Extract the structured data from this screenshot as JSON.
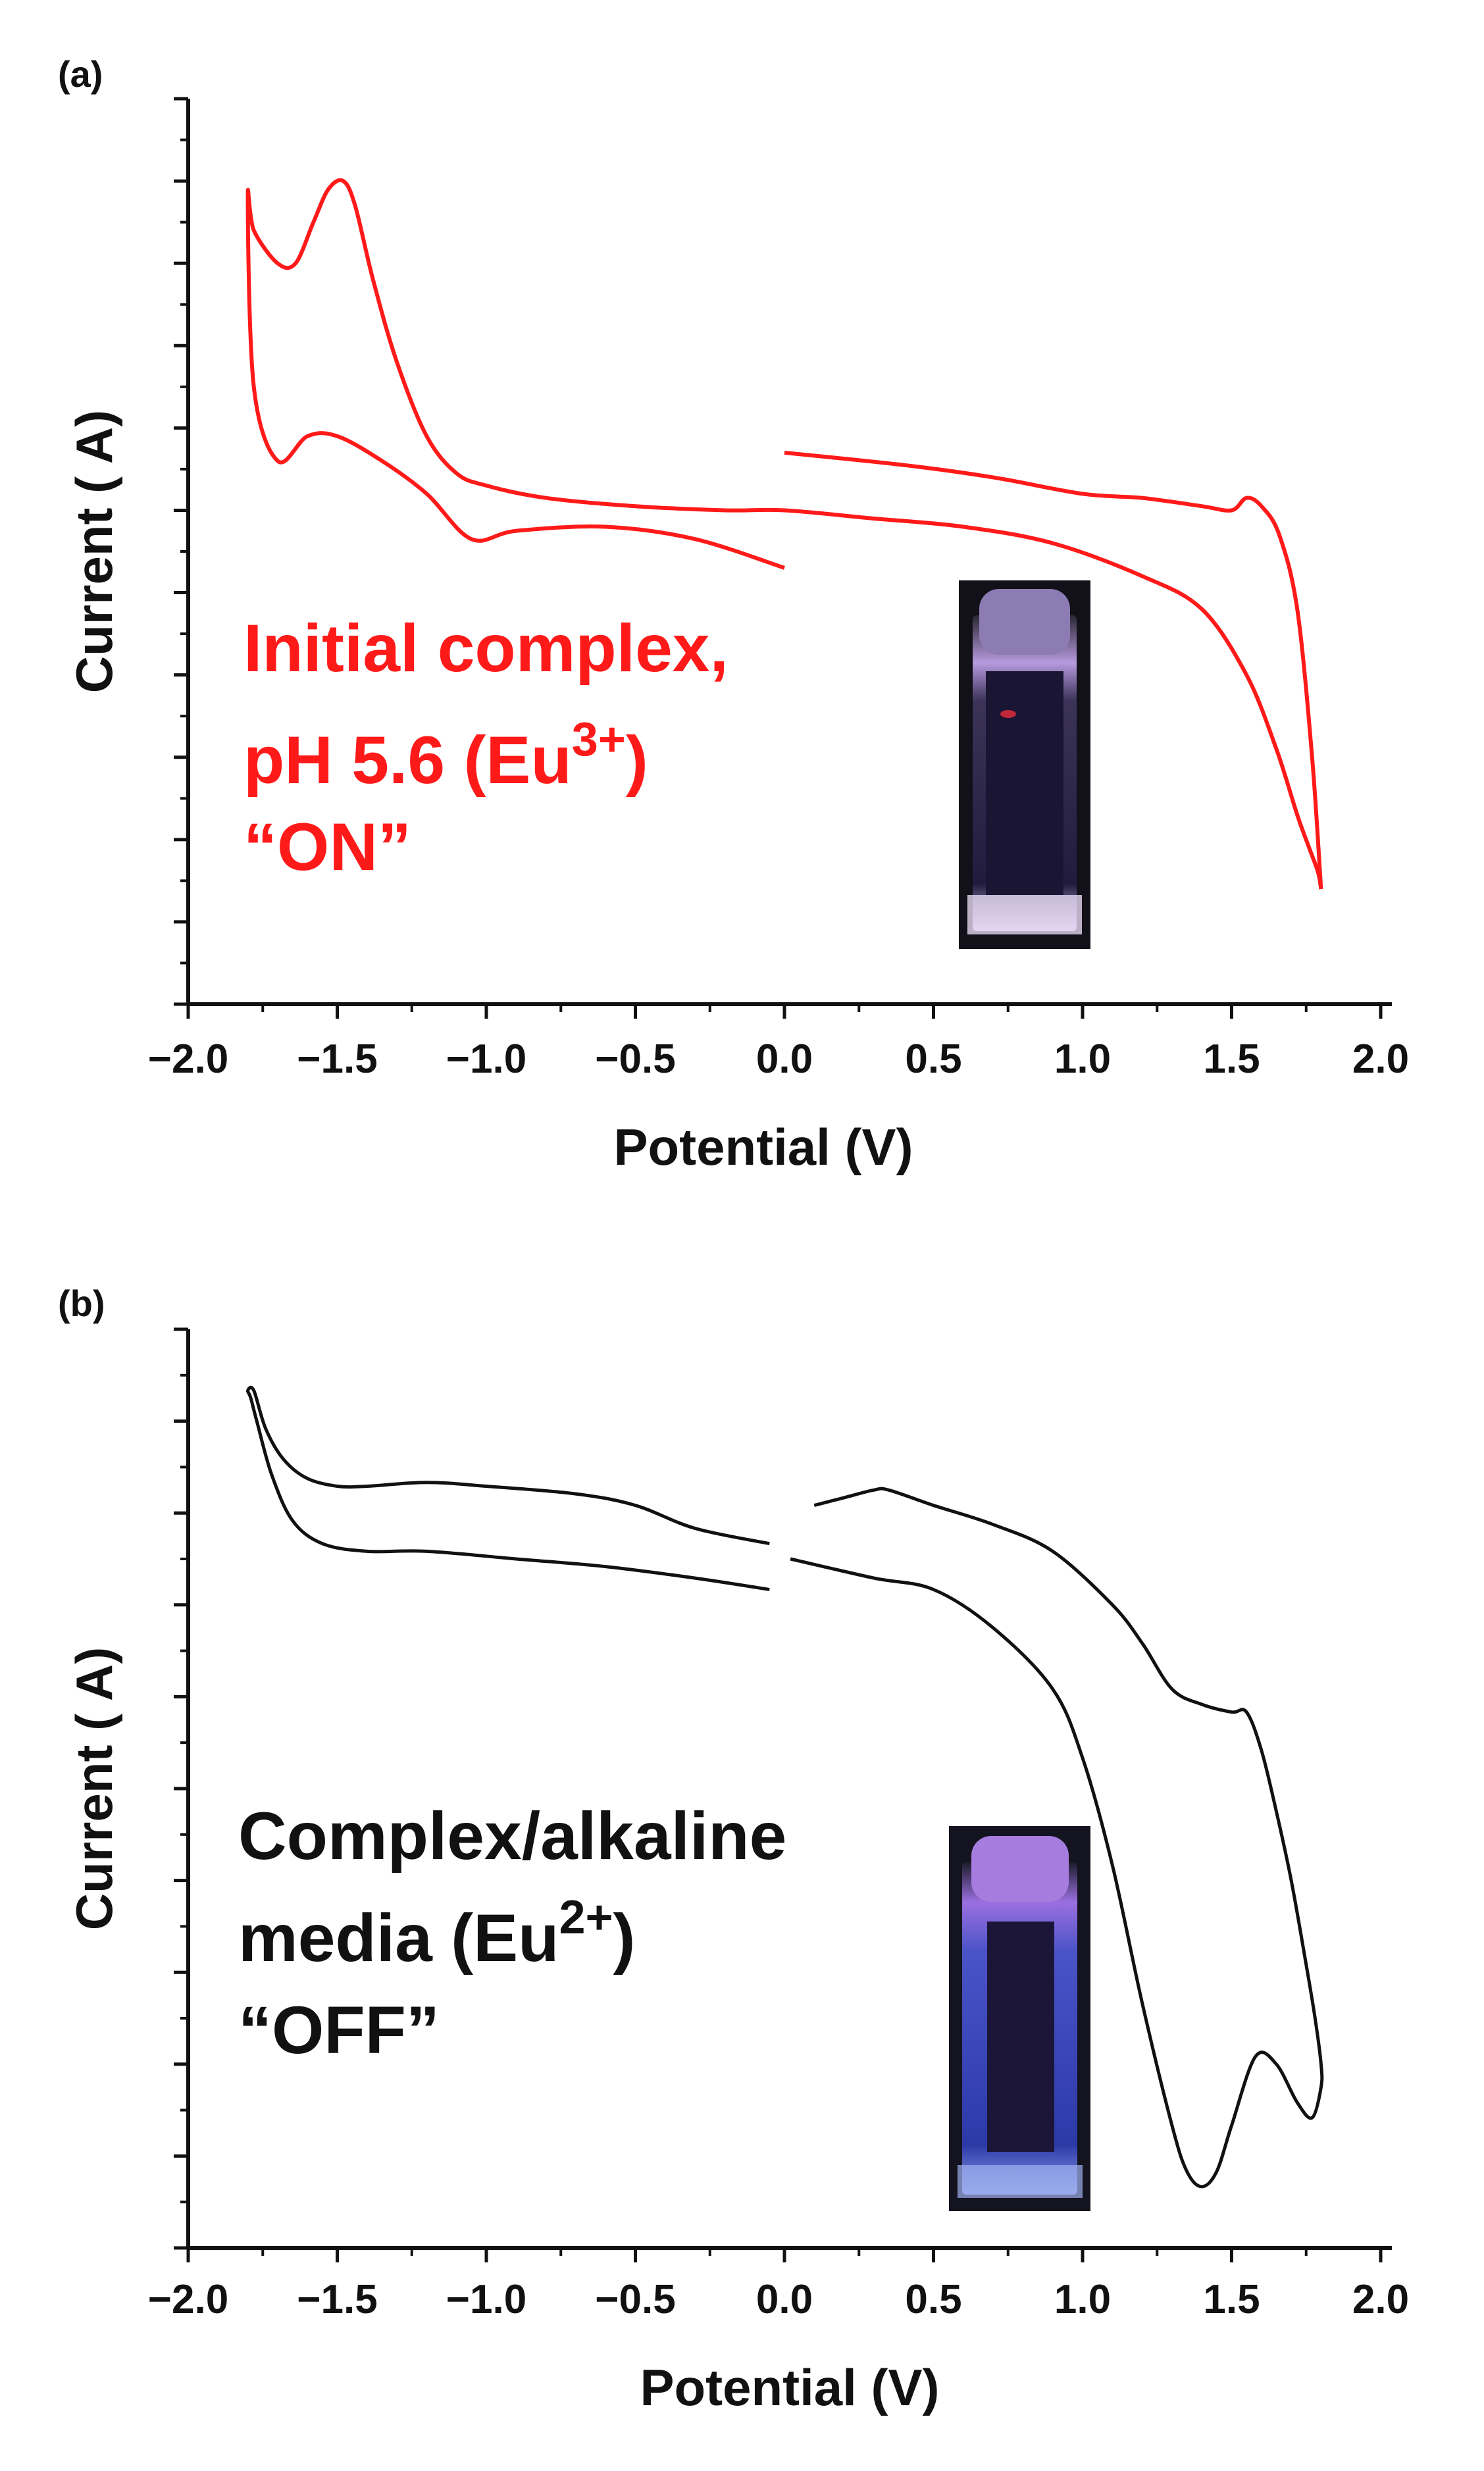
{
  "chart_data": [
    {
      "type": "line",
      "panel_label": "(a)",
      "xlabel": "Potential (V)",
      "ylabel": "Current ( A)",
      "xlim": [
        -2.0,
        2.0
      ],
      "ylim": [
        -6,
        5
      ],
      "x_ticks": [
        "−2.0",
        "−1.5",
        "−1.0",
        "−0.5",
        "0.0",
        "0.5",
        "1.0",
        "1.5",
        "2.0"
      ],
      "x_tick_values": [
        -2.0,
        -1.5,
        -1.0,
        -0.5,
        0.0,
        0.5,
        1.0,
        1.5,
        2.0
      ],
      "y_tick_labels_shown": false,
      "grid": false,
      "line_color": "#ff1a1a",
      "annotation": {
        "line1": "Initial complex,",
        "line2_pre": "pH 5.6 (Eu",
        "line2_sup": "3+",
        "line2_post": ")",
        "line3": "“ON”",
        "color": "#ff1a1a"
      },
      "inset": "vial-photo-on",
      "series": [
        {
          "x": [
            0.0,
            -0.3,
            -0.6,
            -0.9,
            -1.05,
            -1.2,
            -1.35,
            -1.5,
            -1.6,
            -1.7,
            -1.78,
            -1.8,
            -1.78,
            -1.7,
            -1.64,
            -1.58,
            -1.53,
            -1.48,
            -1.44,
            -1.38,
            -1.3,
            -1.2,
            -1.1,
            -1.0,
            -0.8,
            -0.5,
            -0.2,
            0.0,
            0.3,
            0.6,
            0.9,
            1.2,
            1.4,
            1.55,
            1.65,
            1.72,
            1.76,
            1.79,
            1.8
          ],
          "y": [
            -0.7,
            -0.35,
            -0.2,
            -0.25,
            -0.35,
            0.2,
            0.6,
            0.9,
            0.9,
            0.6,
            1.5,
            3.8,
            3.4,
            3.0,
            3.0,
            3.5,
            3.9,
            4.0,
            3.7,
            2.8,
            1.8,
            0.9,
            0.45,
            0.3,
            0.15,
            0.05,
            0.0,
            0.0,
            -0.1,
            -0.2,
            -0.4,
            -0.8,
            -1.2,
            -2.0,
            -2.9,
            -3.7,
            -4.1,
            -4.4,
            -4.6
          ]
        },
        {
          "x": [
            1.8,
            1.77,
            1.72,
            1.66,
            1.6,
            1.55,
            1.5,
            1.4,
            1.2,
            1.0,
            0.7,
            0.4,
            0.0
          ],
          "y": [
            -4.6,
            -3.0,
            -1.2,
            -0.3,
            0.05,
            0.15,
            0.0,
            0.05,
            0.15,
            0.2,
            0.4,
            0.55,
            0.7
          ]
        }
      ]
    },
    {
      "type": "line",
      "panel_label": "(b)",
      "xlabel": "Potential (V)",
      "ylabel": "Current ( A)",
      "xlim": [
        -2.0,
        2.0
      ],
      "ylim": [
        -9,
        3
      ],
      "x_ticks": [
        "−2.0",
        "−1.5",
        "−1.0",
        "−0.5",
        "0.0",
        "0.5",
        "1.0",
        "1.5",
        "2.0"
      ],
      "x_tick_values": [
        -2.0,
        -1.5,
        -1.0,
        -0.5,
        0.0,
        0.5,
        1.0,
        1.5,
        2.0
      ],
      "y_tick_labels_shown": false,
      "grid": false,
      "line_color": "#111111",
      "annotation": {
        "line1": "Complex/alkaline",
        "line2_pre": "media (Eu",
        "line2_sup": "2+",
        "line2_post": ")",
        "line3": "“OFF”",
        "color": "#111111"
      },
      "inset": "vial-photo-off",
      "series": [
        {
          "x": [
            -0.05,
            -0.3,
            -0.6,
            -0.9,
            -1.2,
            -1.4,
            -1.55,
            -1.65,
            -1.72,
            -1.77,
            -1.79,
            -1.8,
            -1.78,
            -1.74,
            -1.68,
            -1.6,
            -1.5,
            -1.4,
            -1.2,
            -1.0,
            -0.7,
            -0.5,
            -0.3,
            -0.05
          ],
          "y": [
            -0.4,
            -0.25,
            -0.1,
            0.0,
            0.1,
            0.1,
            0.2,
            0.5,
            1.1,
            1.8,
            2.1,
            2.2,
            2.2,
            1.7,
            1.3,
            1.05,
            0.95,
            0.95,
            1.0,
            0.95,
            0.85,
            0.7,
            0.4,
            0.2
          ]
        },
        {
          "x": [
            0.1,
            0.2,
            0.3,
            0.35,
            0.5,
            0.7,
            0.9,
            1.1,
            1.2,
            1.3,
            1.4,
            1.5,
            1.55,
            1.6,
            1.65,
            1.7,
            1.75,
            1.78,
            1.8,
            1.8,
            1.77,
            1.72,
            1.65,
            1.58,
            1.5,
            1.45,
            1.4,
            1.35,
            1.3,
            1.2,
            1.1,
            1.0,
            0.9,
            0.7,
            0.5,
            0.3,
            0.02
          ],
          "y": [
            0.7,
            0.8,
            0.9,
            0.9,
            0.7,
            0.45,
            0.1,
            -0.6,
            -1.1,
            -1.7,
            -1.9,
            -2.0,
            -2.0,
            -2.5,
            -3.3,
            -4.2,
            -5.3,
            -6.0,
            -6.6,
            -6.9,
            -7.3,
            -7.1,
            -6.6,
            -6.5,
            -7.4,
            -8.0,
            -8.2,
            -8.0,
            -7.4,
            -5.8,
            -4.0,
            -2.6,
            -1.7,
            -0.9,
            -0.4,
            -0.25,
            0.0
          ]
        }
      ]
    }
  ]
}
